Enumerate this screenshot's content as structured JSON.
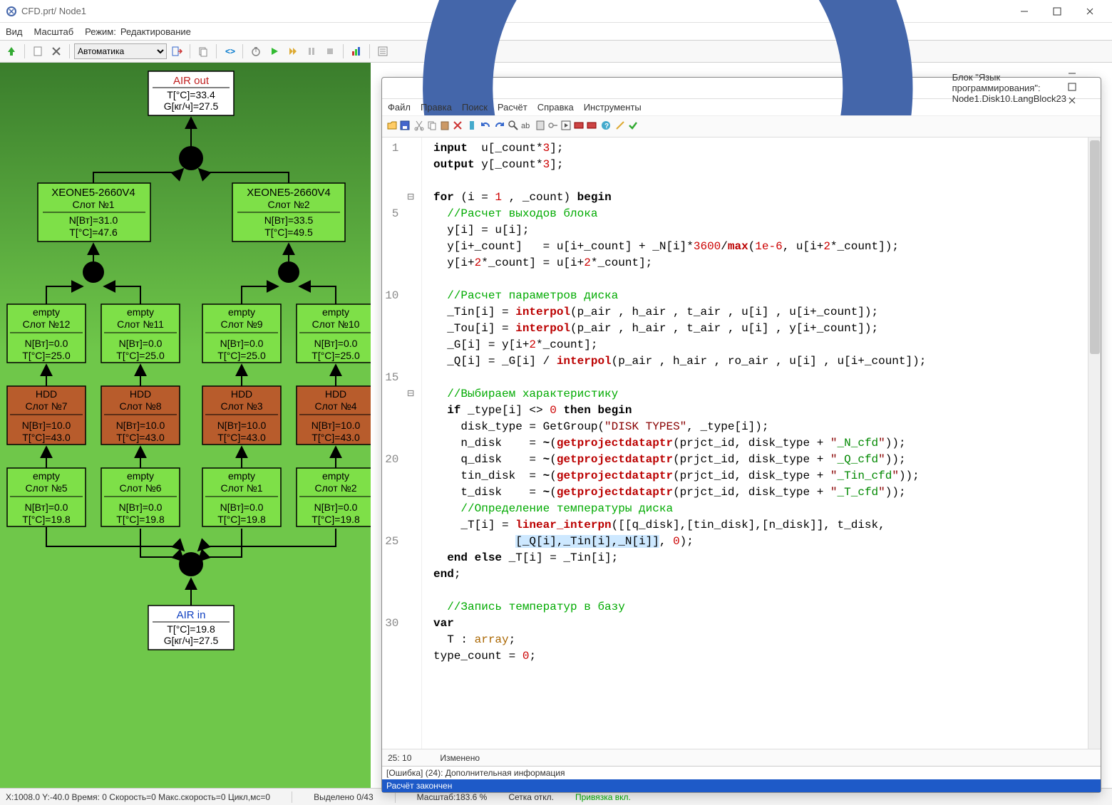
{
  "main": {
    "title": "CFD.prt/ Node1",
    "menu": {
      "view": "Вид",
      "scale": "Масштаб",
      "mode": "Режим:",
      "mode_value": "Редактирование"
    },
    "toolbar": {
      "combo": "Автоматика"
    },
    "status": {
      "left": "X:1008.0  Y:-40.0 Время: 0 Скорость=0 Макс.скорость=0 Цикл,мс=0",
      "selected": "Выделено 0/43",
      "scale": "Масштаб:183.6 %",
      "grid": "Сетка откл.",
      "snap": "Привязка вкл."
    }
  },
  "diagram": {
    "colors": {
      "bg_top": "#3a7d2c",
      "bg_bot": "#6fc74a",
      "air_fill": "#ffffff",
      "air_title": "#c02020",
      "xeon_fill": "#7ee048",
      "empty_fill": "#7ee048",
      "hdd_fill": "#b85c2c",
      "air_in_title": "#1040c0",
      "black": "#000000"
    },
    "air_out": {
      "title": "AIR out",
      "l1": "T[°C]=33.4",
      "l2": "G[кг/ч]=27.5"
    },
    "xeon1": {
      "title": "XEONE5-2660V4",
      "slot": "Слот №1",
      "n": "N[Вт]=31.0",
      "t": "T[°C]=47.6"
    },
    "xeon2": {
      "title": "XEONE5-2660V4",
      "slot": "Слот №2",
      "n": "N[Вт]=33.5",
      "t": "T[°C]=49.5"
    },
    "row_empty_top": [
      {
        "title": "empty",
        "slot": "Слот №12",
        "n": "N[Вт]=0.0",
        "t": "T[°C]=25.0"
      },
      {
        "title": "empty",
        "slot": "Слот №11",
        "n": "N[Вт]=0.0",
        "t": "T[°C]=25.0"
      },
      {
        "title": "empty",
        "slot": "Слот №9",
        "n": "N[Вт]=0.0",
        "t": "T[°C]=25.0"
      },
      {
        "title": "empty",
        "slot": "Слот №10",
        "n": "N[Вт]=0.0",
        "t": "T[°C]=25.0"
      }
    ],
    "row_hdd": [
      {
        "title": "HDD",
        "slot": "Слот №7",
        "n": "N[Вт]=10.0",
        "t": "T[°C]=43.0"
      },
      {
        "title": "HDD",
        "slot": "Слот №8",
        "n": "N[Вт]=10.0",
        "t": "T[°C]=43.0"
      },
      {
        "title": "HDD",
        "slot": "Слот №3",
        "n": "N[Вт]=10.0",
        "t": "T[°C]=43.0"
      },
      {
        "title": "HDD",
        "slot": "Слот №4",
        "n": "N[Вт]=10.0",
        "t": "T[°C]=43.0"
      }
    ],
    "row_empty_bot": [
      {
        "title": "empty",
        "slot": "Слот №5",
        "n": "N[Вт]=0.0",
        "t": "T[°C]=19.8"
      },
      {
        "title": "empty",
        "slot": "Слот №6",
        "n": "N[Вт]=0.0",
        "t": "T[°C]=19.8"
      },
      {
        "title": "empty",
        "slot": "Слот №1",
        "n": "N[Вт]=0.0",
        "t": "T[°C]=19.8"
      },
      {
        "title": "empty",
        "slot": "Слот №2",
        "n": "N[Вт]=0.0",
        "t": "T[°C]=19.8"
      }
    ],
    "air_in": {
      "title": "AIR in",
      "l1": "T[°C]=19.8",
      "l2": "G[кг/ч]=27.5"
    }
  },
  "editor": {
    "title": "Блок \"Язык программирования\": Node1.Disk10.LangBlock23",
    "menu": {
      "file": "Файл",
      "edit": "Правка",
      "search": "Поиск",
      "calc": "Расчёт",
      "help": "Справка",
      "tools": "Инструменты"
    },
    "line_numbers": [
      "1",
      "",
      "",
      "",
      "5",
      "",
      "",
      "",
      "",
      "10",
      "",
      "",
      "",
      "",
      "15",
      "",
      "",
      "",
      "",
      "20",
      "",
      "",
      "",
      "",
      "25",
      "",
      "",
      "",
      "",
      "30",
      "",
      ""
    ],
    "status": {
      "pos": "25: 10",
      "changed": "Изменено"
    },
    "output": {
      "err": "[Ошибка] (24): Дополнительная информация",
      "done": "Расчёт закончен"
    }
  }
}
